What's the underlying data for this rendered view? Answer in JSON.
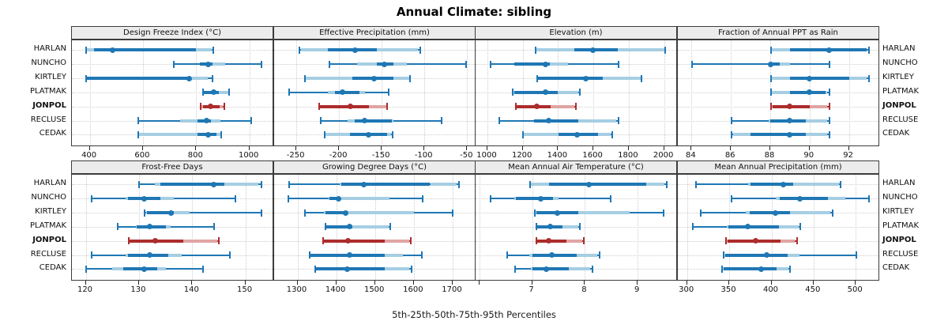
{
  "title": "Annual Climate: sibling",
  "caption": "5th-25th-50th-75th-95th Percentiles",
  "stations": [
    "HARLAN",
    "NUNCHO",
    "KIRTLEY",
    "PLATMAK",
    "JONPOL",
    "RECLUSE",
    "CEDAK"
  ],
  "highlight_station": "JONPOL",
  "colors": {
    "series": "#1f77b4",
    "series_light": "#a6cee3",
    "highlight": "#ad2c2c",
    "highlight_light": "#e0a4a4",
    "grid": "#cdcdcd",
    "strip_bg": "#ececec",
    "panel_border": "#3c3c3c"
  },
  "chart_data": {
    "type": "dot-interval percentile plot (trellis, 2 rows x 4 cols)",
    "value_format": "[p5, band_lo, p25, p50, p75, band_hi, p95] — thin whisker p5..p95 with end caps, light band band_lo..p25 and p75..band_hi, dark band p25..p75, dot at median p50",
    "legend_note": "5th-25th-50th-75th-95th percentiles per station; JONPOL highlighted in red",
    "panels": [
      {
        "title": "Design Freeze Index (°C)",
        "row": 0,
        "col": 0,
        "xmin": 333,
        "xmax": 1087,
        "ticks": [
          {
            "v": 400,
            "label": "400"
          },
          {
            "v": 600,
            "label": "600"
          },
          {
            "v": 800,
            "label": "800"
          },
          {
            "v": 1000,
            "label": "1000"
          }
        ],
        "values": {
          "HARLAN": [
            385,
            385,
            415,
            487,
            800,
            858,
            862
          ],
          "NUNCHO": [
            715,
            815,
            815,
            845,
            860,
            910,
            1045
          ],
          "KIRTLEY": [
            385,
            385,
            390,
            775,
            780,
            845,
            860
          ],
          "PLATMAK": [
            825,
            825,
            830,
            865,
            885,
            920,
            922
          ],
          "JONPOL": [
            815,
            815,
            825,
            855,
            888,
            900,
            903
          ],
          "RECLUSE": [
            580,
            740,
            805,
            838,
            855,
            890,
            1005
          ],
          "CEDAK": [
            580,
            580,
            805,
            845,
            875,
            890,
            892
          ]
        }
      },
      {
        "title": "Effective Precipitation (mm)",
        "row": 0,
        "col": 1,
        "xmin": -276,
        "xmax": -41,
        "ticks": [
          {
            "v": -250,
            "label": "-250"
          },
          {
            "v": -200,
            "label": "-200"
          },
          {
            "v": -150,
            "label": "-150"
          },
          {
            "v": -100,
            "label": "-100"
          },
          {
            "v": -50,
            "label": "-50"
          }
        ],
        "values": {
          "HARLAN": [
            -247,
            -245,
            -213,
            -181,
            -156,
            -108,
            -105
          ],
          "NUNCHO": [
            -212,
            -179,
            -156,
            -147,
            -136,
            -121,
            -52
          ],
          "KIRTLEY": [
            -240,
            -239,
            -184,
            -159,
            -136,
            -118,
            -117
          ],
          "PLATMAK": [
            -259,
            -213,
            -205,
            -196,
            -176,
            -170,
            -142
          ],
          "JONPOL": [
            -224,
            -224,
            -222,
            -187,
            -165,
            -145,
            -144
          ],
          "RECLUSE": [
            -222,
            -190,
            -182,
            -170,
            -138,
            -136,
            -80
          ],
          "CEDAK": [
            -217,
            -216,
            -187,
            -165,
            -144,
            -139,
            -138
          ]
        }
      },
      {
        "title": "Elevation (m)",
        "row": 0,
        "col": 2,
        "xmin": 933,
        "xmax": 2069,
        "ticks": [
          {
            "v": 1000,
            "label": "1000"
          },
          {
            "v": 1200,
            "label": "1200"
          },
          {
            "v": 1400,
            "label": "1400"
          },
          {
            "v": 1600,
            "label": "1600"
          },
          {
            "v": 1800,
            "label": "1800"
          },
          {
            "v": 2000,
            "label": "2000"
          }
        ],
        "values": {
          "HARLAN": [
            1270,
            1272,
            1490,
            1596,
            1737,
            2000,
            2004
          ],
          "NUNCHO": [
            1015,
            1150,
            1152,
            1330,
            1353,
            1456,
            1740
          ],
          "KIRTLEY": [
            1279,
            1279,
            1288,
            1559,
            1654,
            1868,
            1872
          ],
          "PLATMAK": [
            1140,
            1140,
            1154,
            1328,
            1397,
            1515,
            1522
          ],
          "JONPOL": [
            1157,
            1157,
            1163,
            1279,
            1360,
            1493,
            1500
          ],
          "RECLUSE": [
            1063,
            1265,
            1266,
            1345,
            1515,
            1728,
            1740
          ],
          "CEDAK": [
            1199,
            1206,
            1404,
            1507,
            1625,
            1700,
            1706
          ]
        }
      },
      {
        "title": "Fraction of Annual PPT as Rain",
        "row": 0,
        "col": 3,
        "xmin": 83.3,
        "xmax": 93.5,
        "ticks": [
          {
            "v": 84,
            "label": "84"
          },
          {
            "v": 86,
            "label": "86"
          },
          {
            "v": 88,
            "label": "88"
          },
          {
            "v": 90,
            "label": "90"
          },
          {
            "v": 92,
            "label": "92"
          }
        ],
        "values": {
          "HARLAN": [
            88,
            88,
            89,
            91,
            92.9,
            92.9,
            93
          ],
          "NUNCHO": [
            84,
            87.9,
            87.9,
            88,
            88.5,
            89,
            91
          ],
          "KIRTLEY": [
            88,
            88,
            89,
            90,
            92,
            92.9,
            93
          ],
          "PLATMAK": [
            88,
            88,
            89,
            90,
            90.8,
            90.9,
            91
          ],
          "JONPOL": [
            88,
            88,
            88.1,
            89,
            90,
            90.9,
            91
          ],
          "RECLUSE": [
            86,
            87.9,
            88,
            89,
            89.8,
            90.9,
            91
          ],
          "CEDAK": [
            86,
            86.1,
            87,
            89,
            89.8,
            90.9,
            91
          ]
        }
      },
      {
        "title": "Frost-Free Days",
        "row": 1,
        "col": 0,
        "xmin": 117.4,
        "xmax": 155.1,
        "ticks": [
          {
            "v": 120,
            "label": "120"
          },
          {
            "v": 130,
            "label": "130"
          },
          {
            "v": 140,
            "label": "140"
          },
          {
            "v": 150,
            "label": "150"
          }
        ],
        "values": {
          "HARLAN": [
            130,
            133,
            134,
            144,
            146,
            152.5,
            153
          ],
          "NUNCHO": [
            121,
            127.5,
            128,
            131,
            134,
            136.5,
            148
          ],
          "KIRTLEY": [
            131,
            131.3,
            131.5,
            136,
            136.5,
            139.5,
            153
          ],
          "PLATMAK": [
            126,
            129.4,
            129.6,
            132,
            135,
            136,
            144
          ],
          "JONPOL": [
            128,
            128,
            128.3,
            133,
            138.3,
            144.7,
            145
          ],
          "RECLUSE": [
            121,
            127.5,
            128,
            132,
            135.5,
            138,
            147
          ],
          "CEDAK": [
            120,
            125,
            127,
            131,
            133.5,
            135,
            142
          ]
        }
      },
      {
        "title": "Growing Degree Days (°C)",
        "row": 1,
        "col": 1,
        "xmin": 1240,
        "xmax": 1757,
        "ticks": [
          {
            "v": 1300,
            "label": "1300"
          },
          {
            "v": 1400,
            "label": "1400"
          },
          {
            "v": 1500,
            "label": "1500"
          },
          {
            "v": 1600,
            "label": "1600"
          },
          {
            "v": 1700,
            "label": "1700"
          }
        ],
        "values": {
          "HARLAN": [
            1277,
            1408,
            1413,
            1471,
            1642,
            1710,
            1716
          ],
          "NUNCHO": [
            1276,
            1381,
            1383,
            1406,
            1412,
            1538,
            1621
          ],
          "KIRTLEY": [
            1319,
            1368,
            1372,
            1424,
            1430,
            1600,
            1700
          ],
          "PLATMAK": [
            1371,
            1371,
            1375,
            1435,
            1442,
            1535,
            1538
          ],
          "JONPOL": [
            1365,
            1365,
            1369,
            1431,
            1525,
            1589,
            1592
          ],
          "RECLUSE": [
            1330,
            1330,
            1333,
            1435,
            1525,
            1571,
            1620
          ],
          "CEDAK": [
            1345,
            1345,
            1348,
            1428,
            1525,
            1589,
            1593
          ]
        }
      },
      {
        "title": "Mean Annual Air Temperature (°C)",
        "row": 1,
        "col": 2,
        "xmin": 5.93,
        "xmax": 9.73,
        "ticks": [
          {
            "v": 6,
            "label": ""
          },
          {
            "v": 7,
            "label": "7"
          },
          {
            "v": 8,
            "label": "8"
          },
          {
            "v": 9,
            "label": "9"
          }
        ],
        "values": {
          "HARLAN": [
            6.96,
            6.98,
            7.32,
            8.08,
            9.16,
            9.5,
            9.55
          ],
          "NUNCHO": [
            6.2,
            6.66,
            6.7,
            7.17,
            7.4,
            7.5,
            8.48
          ],
          "KIRTLEY": [
            7.05,
            7.05,
            7.08,
            7.48,
            7.87,
            8.85,
            9.49
          ],
          "PLATMAK": [
            7.08,
            7.08,
            7.1,
            7.35,
            7.57,
            7.87,
            7.9
          ],
          "JONPOL": [
            7.08,
            7.08,
            7.1,
            7.31,
            7.65,
            7.95,
            7.97
          ],
          "RECLUSE": [
            6.52,
            6.95,
            7.0,
            7.37,
            7.85,
            8.24,
            8.27
          ],
          "CEDAK": [
            6.67,
            6.97,
            7.0,
            7.27,
            7.7,
            8.1,
            8.14
          ]
        }
      },
      {
        "title": "Mean Annual Precipitation (mm)",
        "row": 1,
        "col": 3,
        "xmin": 289,
        "xmax": 527,
        "ticks": [
          {
            "v": 300,
            "label": "300"
          },
          {
            "v": 350,
            "label": "350"
          },
          {
            "v": 400,
            "label": "400"
          },
          {
            "v": 450,
            "label": "450"
          },
          {
            "v": 500,
            "label": "500"
          }
        ],
        "values": {
          "HARLAN": [
            310,
            372,
            375,
            414,
            426,
            480,
            482
          ],
          "NUNCHO": [
            352,
            405,
            410,
            434,
            467,
            488,
            515
          ],
          "KIRTLEY": [
            316,
            370,
            374,
            405,
            422,
            470,
            472
          ],
          "PLATMAK": [
            306,
            347,
            349,
            372,
            409,
            432,
            434
          ],
          "JONPOL": [
            346,
            346,
            348,
            381,
            411,
            428,
            430
          ],
          "RECLUSE": [
            343,
            343,
            345,
            394,
            419,
            433,
            500
          ],
          "CEDAK": [
            341,
            341,
            343,
            388,
            406,
            420,
            422
          ]
        }
      }
    ]
  }
}
